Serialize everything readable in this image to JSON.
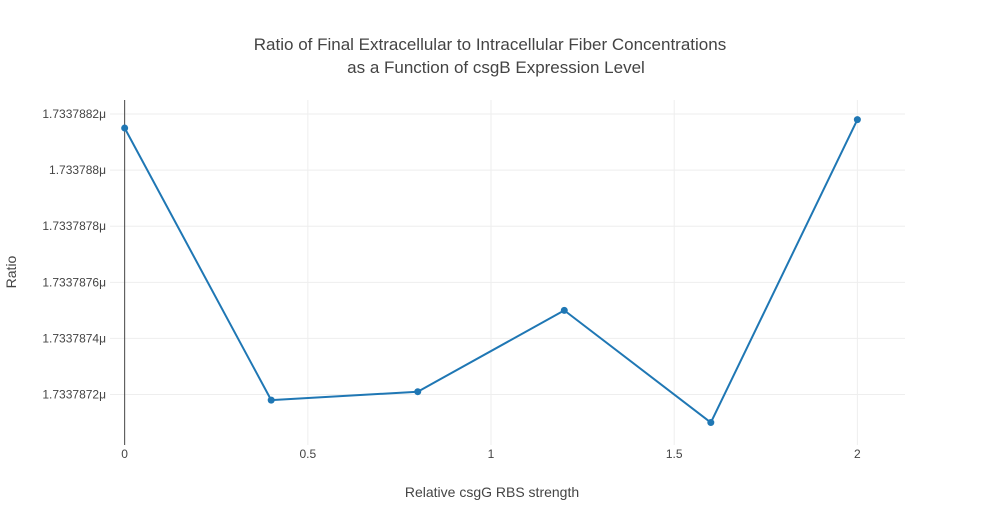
{
  "chart_data": {
    "type": "line",
    "title_lines": [
      "Ratio of Final Extracellular to Intracellular Fiber Concentrations",
      "as a Function of csgB Expression Level"
    ],
    "xlabel": "Relative csgG RBS strength",
    "ylabel": "Ratio",
    "x_ticks": [
      {
        "value": 0,
        "label": "0"
      },
      {
        "value": 0.5,
        "label": "0.5"
      },
      {
        "value": 1,
        "label": "1"
      },
      {
        "value": 1.5,
        "label": "1.5"
      },
      {
        "value": 2,
        "label": "2"
      }
    ],
    "y_ticks": [
      {
        "value": 1.7337872,
        "label": "1.7337872μ"
      },
      {
        "value": 1.7337874,
        "label": "1.7337874μ"
      },
      {
        "value": 1.7337876,
        "label": "1.7337876μ"
      },
      {
        "value": 1.7337878,
        "label": "1.7337878μ"
      },
      {
        "value": 1.733788,
        "label": "1.733788μ"
      },
      {
        "value": 1.7337882,
        "label": "1.7337882μ"
      }
    ],
    "xlim": [
      -0.04,
      2.13
    ],
    "ylim": [
      1.73378702,
      1.73378825
    ],
    "grid": true,
    "series": [
      {
        "color": "#1f77b4",
        "x": [
          0,
          0.4,
          0.8,
          1.2,
          1.6,
          2
        ],
        "y": [
          1.73378815,
          1.73378718,
          1.73378721,
          1.7337875,
          1.7337871,
          1.73378818
        ]
      }
    ]
  }
}
